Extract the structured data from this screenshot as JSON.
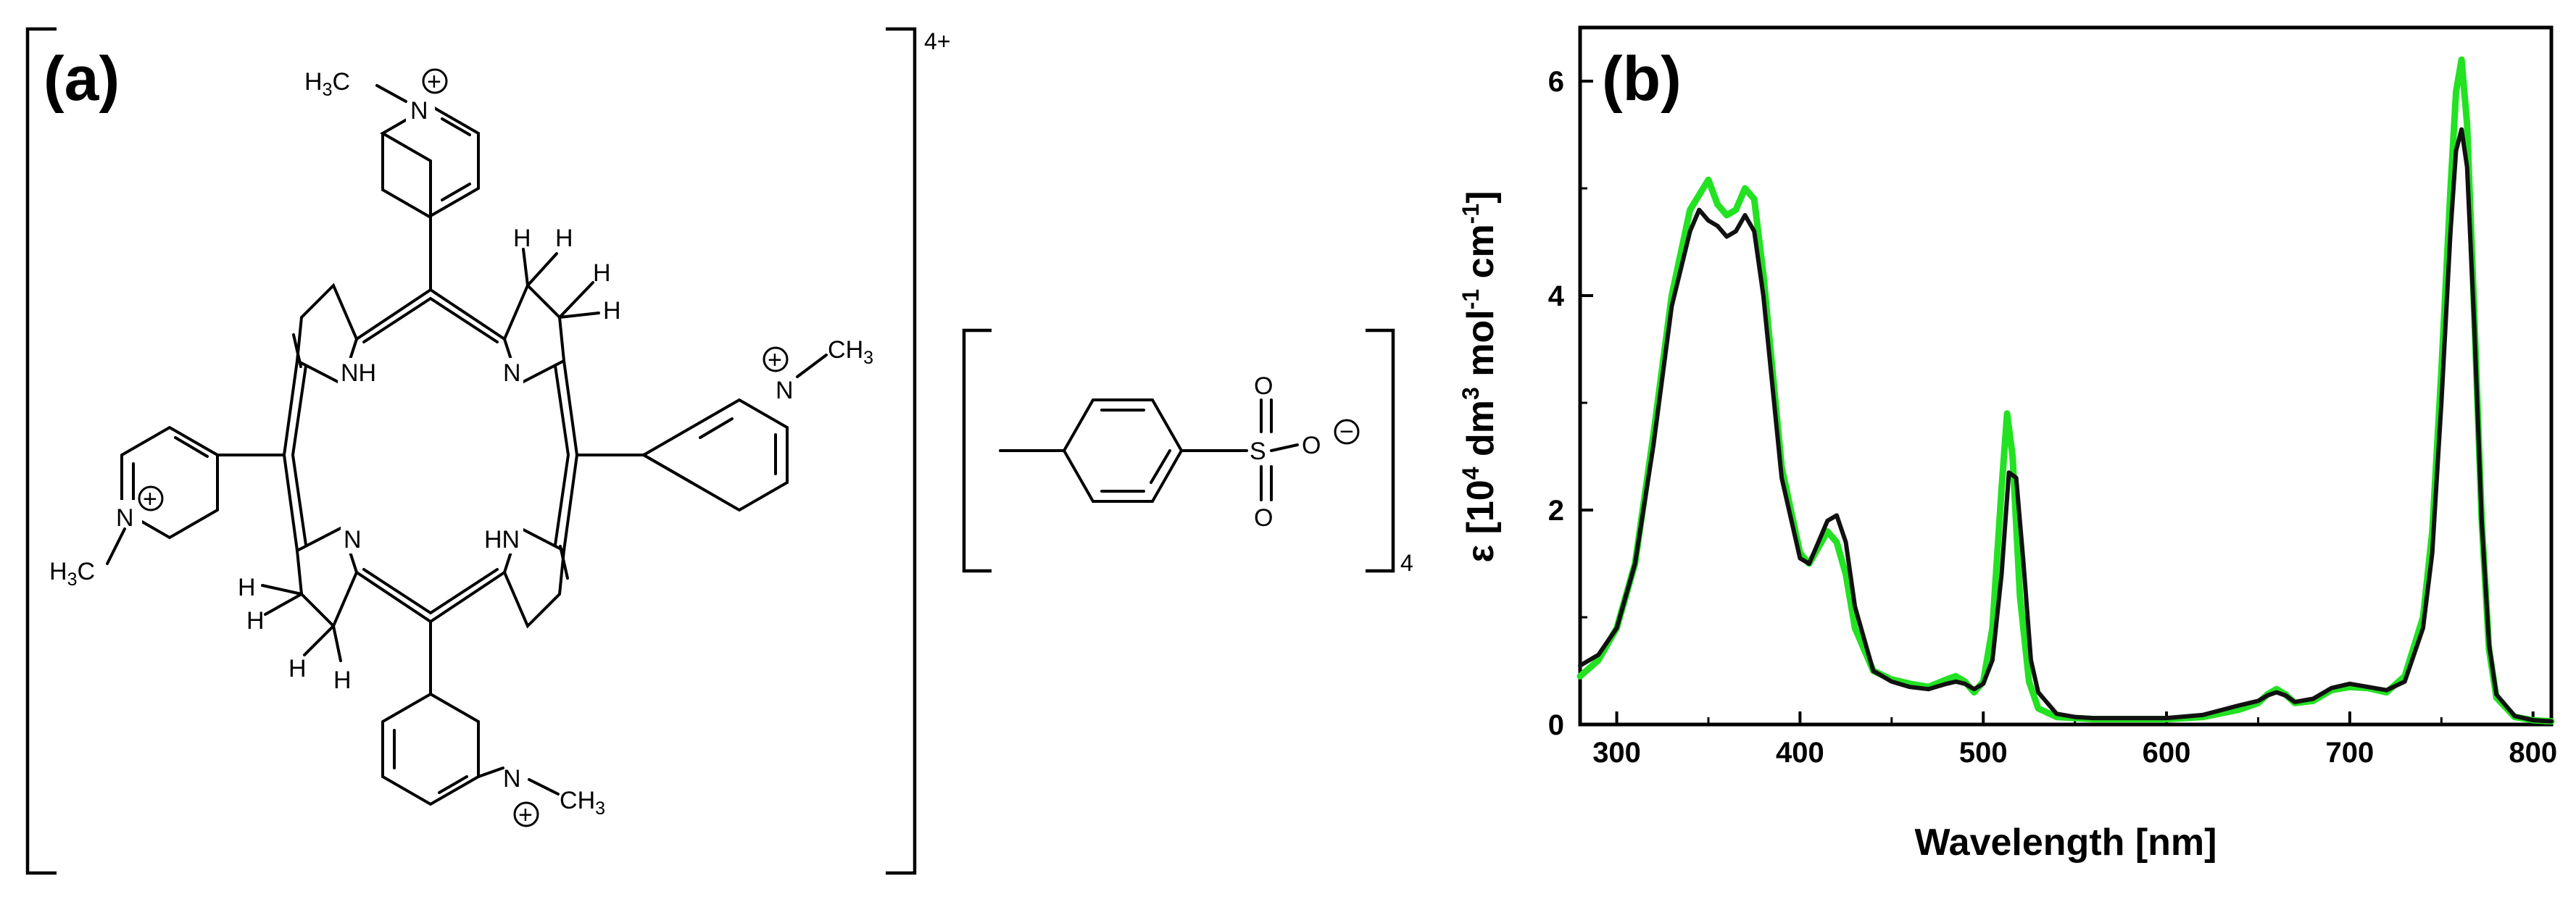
{
  "panels": {
    "a": {
      "label": "(a)"
    },
    "b": {
      "label": "(b)"
    }
  },
  "structure": {
    "cation_charge": "4+",
    "anion_count": "4",
    "ring_nitrogen_labels": [
      "N",
      "NH",
      "N",
      "HN"
    ],
    "hydrogen_label": "H",
    "pyridinium_methyl": {
      "prefix": "H",
      "digit": "3",
      "element": "C"
    },
    "pyridinium_nitrogen": "N",
    "positive_charge": "+",
    "sulfonate_labels": {
      "sulfur": "S",
      "oxygen": "O",
      "negative_charge": "−"
    }
  },
  "chart_data": {
    "type": "line",
    "title": "",
    "xlabel": "Wavelength [nm]",
    "ylabel": {
      "symbol": "ε",
      "exp1": "4",
      "exp2": "3",
      "exp3": "-1",
      "exp4": "-1"
    },
    "xlim": [
      280,
      810
    ],
    "ylim": [
      0,
      6.5
    ],
    "xticks": [
      300,
      400,
      500,
      600,
      700,
      800
    ],
    "yticks": [
      0,
      2,
      4,
      6
    ],
    "grid": false,
    "legend": "none",
    "series": [
      {
        "color": "#22e222",
        "x": [
          280,
          290,
          300,
          310,
          320,
          330,
          340,
          350,
          355,
          360,
          365,
          370,
          375,
          380,
          390,
          400,
          405,
          410,
          415,
          420,
          425,
          430,
          440,
          450,
          460,
          470,
          480,
          485,
          490,
          495,
          500,
          505,
          510,
          513,
          516,
          520,
          525,
          530,
          540,
          550,
          560,
          580,
          600,
          620,
          640,
          650,
          655,
          660,
          665,
          670,
          680,
          690,
          700,
          710,
          720,
          730,
          740,
          745,
          750,
          755,
          758,
          761,
          764,
          768,
          772,
          776,
          780,
          790,
          800,
          810
        ],
        "y": [
          0.45,
          0.6,
          0.9,
          1.5,
          2.7,
          4.0,
          4.8,
          5.08,
          4.85,
          4.75,
          4.8,
          5.0,
          4.9,
          4.2,
          2.4,
          1.6,
          1.5,
          1.65,
          1.8,
          1.7,
          1.4,
          0.9,
          0.5,
          0.42,
          0.38,
          0.35,
          0.42,
          0.45,
          0.4,
          0.3,
          0.4,
          0.9,
          2.2,
          2.9,
          2.5,
          1.2,
          0.4,
          0.15,
          0.07,
          0.06,
          0.05,
          0.05,
          0.05,
          0.07,
          0.14,
          0.2,
          0.28,
          0.33,
          0.28,
          0.2,
          0.22,
          0.32,
          0.35,
          0.34,
          0.3,
          0.45,
          1.0,
          1.8,
          3.3,
          5.0,
          5.9,
          6.2,
          5.6,
          3.8,
          1.9,
          0.7,
          0.25,
          0.07,
          0.04,
          0.03
        ]
      },
      {
        "color": "#111111",
        "x": [
          280,
          290,
          300,
          310,
          320,
          330,
          340,
          345,
          350,
          355,
          360,
          365,
          370,
          375,
          380,
          390,
          400,
          405,
          410,
          415,
          420,
          425,
          430,
          440,
          450,
          460,
          470,
          480,
          485,
          490,
          495,
          500,
          505,
          510,
          514,
          518,
          522,
          526,
          530,
          540,
          550,
          560,
          580,
          600,
          620,
          640,
          650,
          655,
          660,
          665,
          670,
          680,
          690,
          700,
          710,
          720,
          730,
          740,
          745,
          750,
          755,
          758,
          761,
          764,
          768,
          772,
          776,
          780,
          790,
          800,
          810
        ],
        "y": [
          0.55,
          0.65,
          0.9,
          1.5,
          2.6,
          3.9,
          4.6,
          4.8,
          4.7,
          4.65,
          4.55,
          4.6,
          4.75,
          4.6,
          4.0,
          2.3,
          1.55,
          1.5,
          1.7,
          1.9,
          1.95,
          1.7,
          1.1,
          0.5,
          0.4,
          0.35,
          0.33,
          0.38,
          0.4,
          0.38,
          0.33,
          0.38,
          0.6,
          1.4,
          2.35,
          2.3,
          1.5,
          0.6,
          0.3,
          0.1,
          0.07,
          0.06,
          0.06,
          0.06,
          0.09,
          0.18,
          0.22,
          0.27,
          0.3,
          0.27,
          0.21,
          0.24,
          0.34,
          0.38,
          0.35,
          0.32,
          0.4,
          0.9,
          1.6,
          3.0,
          4.6,
          5.35,
          5.55,
          5.2,
          3.7,
          1.9,
          0.75,
          0.28,
          0.08,
          0.04,
          0.03
        ]
      }
    ]
  }
}
